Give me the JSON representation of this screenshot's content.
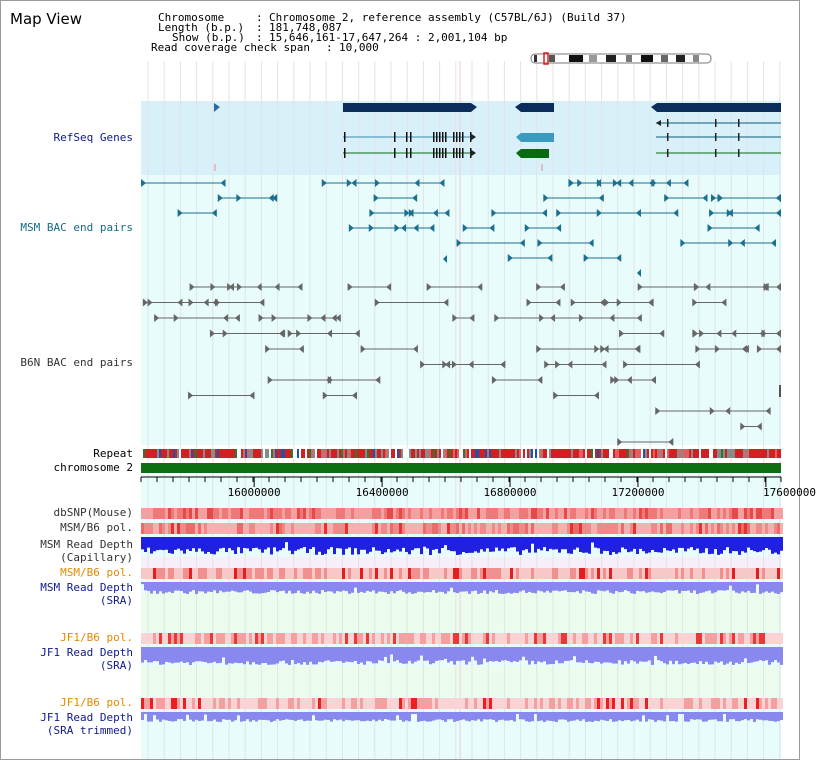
{
  "panel": {
    "title": "Map View"
  },
  "info": {
    "chromosome_key": "Chromosome",
    "chromosome_value": "Chromosome 2, reference assembly (C57BL/6J) (Build 37)",
    "length_key": "Length (b.p.)",
    "length_value": "181,748,087",
    "show_key": "Show (b.p.)",
    "show_value": "15,646,161-17,647,264 : 2,001,104 bp",
    "coverage_key": "Read coverage check span",
    "coverage_value": "10,000"
  },
  "tracks": {
    "refseq": "RefSeq Genes",
    "msm_bac": "MSM BAC end pairs",
    "b6n_bac": "B6N BAC end pairs",
    "repeat": "Repeat",
    "chromosome": "chromosome 2",
    "dbsnp": "dbSNP(Mouse)",
    "msm_b6_pol_1": "MSM/B6 pol.",
    "msm_depth_cap_1": "MSM Read Depth",
    "msm_depth_cap_2": "(Capillary)",
    "msm_b6_pol_2": "MSM/B6 pol.",
    "msm_depth_sra_1": "MSM Read Depth",
    "msm_depth_sra_2": "(SRA)",
    "jf1_b6_pol_1": "JF1/B6 pol.",
    "jf1_depth_sra_1": "JF1 Read Depth",
    "jf1_depth_sra_2": "(SRA)",
    "jf1_b6_pol_2": "JF1/B6 pol.",
    "jf1_depth_trim_1": "JF1 Read Depth",
    "jf1_depth_trim_2": "(SRA trimmed)"
  },
  "axis": {
    "ticks": [
      {
        "bp": 16000000,
        "label": "16000000"
      },
      {
        "bp": 16400000,
        "label": "16400000"
      },
      {
        "bp": 16800000,
        "label": "16800000"
      },
      {
        "bp": 17200000,
        "label": "17200000"
      },
      {
        "bp": 17600000,
        "label": "17600000"
      }
    ]
  },
  "colors": {
    "refseq_bg": "#d8f0fa",
    "track_bg": "#e8fcfc",
    "light_bg": "#ecfcec",
    "gene_dark": "#0c2c5c",
    "gene_teal": "#3a9ac0",
    "gene_green": "#0a6a10",
    "msm_bac": "#1a7090",
    "b6n_bac": "#666666",
    "chromosome_bar": "#0e6e12",
    "depth_blue": "#2020e0",
    "depth_light": "#8888ee"
  },
  "icons": {
    "ideogram": "chromosome-ideogram",
    "position_marker": "position-marker"
  }
}
